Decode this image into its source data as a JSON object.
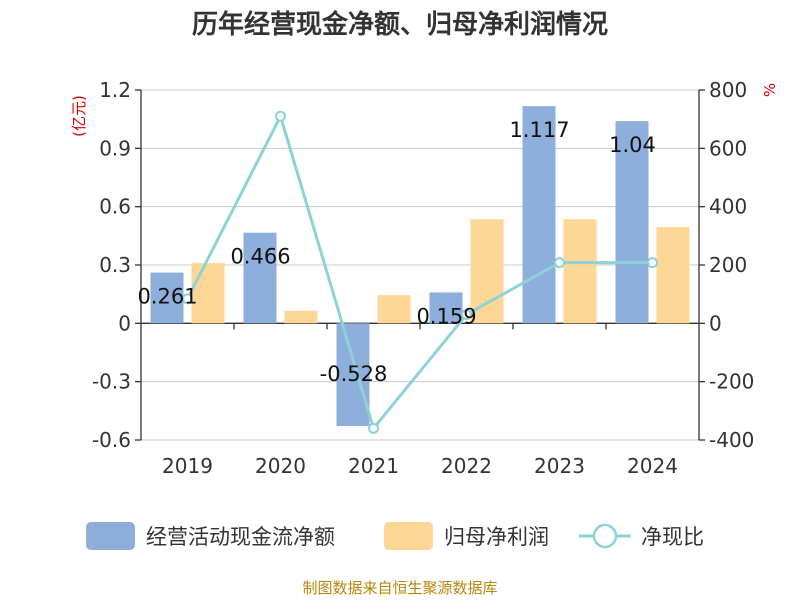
{
  "chart_data": {
    "type": "bar",
    "title": "历年经营现金净额、归母净利润情况",
    "categories": [
      "2019",
      "2020",
      "2021",
      "2022",
      "2023",
      "2024"
    ],
    "y_left": {
      "unit": "(亿元)",
      "ylim": [
        -0.6,
        1.2
      ],
      "ticks": [
        1.2,
        0.9,
        0.6,
        0.3,
        0,
        -0.3,
        -0.6
      ]
    },
    "y_right": {
      "unit": "%",
      "ylim": [
        -400,
        800
      ],
      "ticks": [
        800,
        600,
        400,
        200,
        0,
        -200,
        -400
      ]
    },
    "series": [
      {
        "name": "经营活动现金流净额",
        "type": "bar",
        "axis": "left",
        "color": "#8eaedc",
        "values": [
          0.261,
          0.466,
          -0.528,
          0.159,
          1.117,
          1.04
        ],
        "labels": [
          "0.261",
          "0.466",
          "-0.528",
          "0.159",
          "1.117",
          "1.04"
        ]
      },
      {
        "name": "归母净利润",
        "type": "bar",
        "axis": "left",
        "color": "#fed695",
        "values": [
          0.31,
          0.065,
          0.145,
          0.535,
          0.535,
          0.495
        ]
      },
      {
        "name": "净现比",
        "type": "line",
        "axis": "right",
        "color": "#8dd3d6",
        "values": [
          84,
          710,
          -360,
          30,
          208,
          208
        ]
      }
    ],
    "grid": true,
    "legend_position": "bottom"
  },
  "source": "制图数据来自恒生聚源数据库"
}
